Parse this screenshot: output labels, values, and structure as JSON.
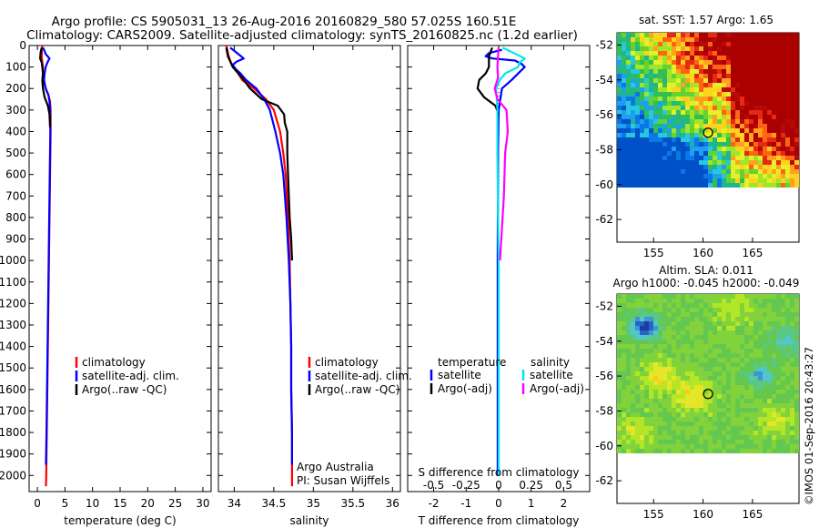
{
  "header": {
    "line1": "Argo profile: CS 5905031_13 26-Aug-2016 20160829_580 57.025S 160.51E",
    "line2": "Climatology: CARS2009. Satellite-adjusted climatology: synTS_20160825.nc (1.2d earlier)"
  },
  "credit": "©IMOS 01-Sep-2016 20:43:27",
  "colors": {
    "climatology": "#ff0000",
    "satellite": "#0000ff",
    "argo": "#000000",
    "sal_satellite": "#00e5ee",
    "sal_argo": "#ff00ff"
  },
  "legend_profile": {
    "climatology": "climatology",
    "satellite": "satellite-adj. clim.",
    "argo": "Argo(..raw -QC)"
  },
  "legend_diff": {
    "temperature_header": "temperature",
    "salinity_header": "salinity",
    "satellite": "satellite",
    "argo": "Argo(-adj)"
  },
  "annotation": {
    "line1": "Argo Australia",
    "line2": "PI: Susan Wijffels"
  },
  "map_sst": {
    "title": "sat. SST: 1.57 Argo: 1.65",
    "x_ticks": [
      155,
      160,
      165
    ],
    "y_ticks": [
      -52,
      -54,
      -56,
      -58,
      -60,
      -62
    ]
  },
  "map_sla": {
    "title1": "Altim. SLA: 0.011",
    "title2": "Argo h1000: -0.045 h2000: -0.049",
    "x_ticks": [
      155,
      160,
      165
    ],
    "y_ticks": [
      -52,
      -54,
      -56,
      -58,
      -60,
      -62
    ]
  },
  "chart_data": [
    {
      "type": "line",
      "name": "temperature-profile",
      "xlabel": "temperature (deg C)",
      "xlim": [
        -1.5,
        31.5
      ],
      "ylim": [
        2075,
        0
      ],
      "x_ticks": [
        0,
        5,
        10,
        15,
        20,
        25,
        30
      ],
      "y_ticks": [
        0,
        100,
        200,
        300,
        400,
        500,
        600,
        700,
        800,
        900,
        1000,
        1100,
        1200,
        1300,
        1400,
        1500,
        1600,
        1700,
        1800,
        1900,
        2000
      ],
      "series": [
        {
          "name": "climatology",
          "depth": [
            0,
            20,
            50,
            80,
            100,
            130,
            160,
            200,
            230,
            260,
            300,
            400,
            500,
            600,
            800,
            1000,
            1200,
            1400,
            1600,
            1800,
            2000,
            2050
          ],
          "values": [
            0.9,
            0.8,
            0.8,
            0.9,
            1.0,
            1.0,
            1.1,
            1.5,
            2.0,
            2.3,
            2.4,
            2.4,
            2.35,
            2.3,
            2.2,
            2.1,
            2.0,
            1.9,
            1.8,
            1.7,
            1.6,
            1.55
          ]
        },
        {
          "name": "satellite-adj. clim.",
          "depth": [
            10,
            20,
            40,
            60,
            80,
            100,
            130,
            160,
            200,
            230,
            260,
            300,
            400,
            500,
            600,
            800,
            1000,
            1200,
            1400,
            1600,
            1800,
            1950
          ],
          "values": [
            1.0,
            1.2,
            1.5,
            2.2,
            1.8,
            1.5,
            1.3,
            1.2,
            1.5,
            2.0,
            2.2,
            2.3,
            2.35,
            2.3,
            2.25,
            2.15,
            2.05,
            1.95,
            1.85,
            1.75,
            1.65,
            1.55
          ]
        },
        {
          "name": "Argo(..raw -QC)",
          "depth": [
            10,
            30,
            60,
            80,
            100,
            130,
            160,
            200,
            240,
            280,
            320,
            380
          ],
          "values": [
            0.8,
            0.6,
            0.5,
            0.8,
            0.9,
            1.0,
            0.9,
            1.0,
            1.3,
            1.9,
            2.2,
            2.3
          ]
        }
      ]
    },
    {
      "type": "line",
      "name": "salinity-profile",
      "xlabel": "salinity",
      "xlim": [
        33.8,
        36.1
      ],
      "ylim": [
        2075,
        0
      ],
      "x_ticks": [
        34,
        34.5,
        35,
        35.5,
        36
      ],
      "series": [
        {
          "name": "climatology",
          "depth": [
            0,
            50,
            80,
            100,
            130,
            160,
            200,
            250,
            300,
            400,
            500,
            600,
            800,
            1000,
            1200,
            1400,
            1600,
            1800,
            2000,
            2050
          ],
          "values": [
            33.9,
            33.93,
            33.96,
            34.0,
            34.05,
            34.1,
            34.25,
            34.4,
            34.5,
            34.58,
            34.62,
            34.65,
            34.68,
            34.7,
            34.71,
            34.72,
            34.72,
            34.73,
            34.73,
            34.73
          ]
        },
        {
          "name": "satellite-adj. clim.",
          "depth": [
            10,
            30,
            60,
            75,
            90,
            110,
            130,
            160,
            200,
            250,
            300,
            400,
            500,
            600,
            800,
            1000,
            1200,
            1400,
            1600,
            1800,
            1950
          ],
          "values": [
            33.95,
            34.02,
            34.12,
            34.03,
            33.98,
            34.02,
            34.08,
            34.15,
            34.28,
            34.38,
            34.45,
            34.52,
            34.58,
            34.62,
            34.66,
            34.69,
            34.71,
            34.72,
            34.72,
            34.73,
            34.73
          ]
        },
        {
          "name": "Argo(..raw -QC)",
          "depth": [
            10,
            50,
            100,
            150,
            200,
            250,
            280,
            320,
            360,
            400,
            500,
            600,
            700,
            800,
            900,
            1000
          ],
          "values": [
            33.9,
            33.92,
            33.98,
            34.1,
            34.2,
            34.35,
            34.55,
            34.63,
            34.64,
            34.67,
            34.67,
            34.68,
            34.69,
            34.7,
            34.72,
            34.73
          ]
        }
      ]
    },
    {
      "type": "line",
      "name": "difference-profile",
      "xlabel": "T difference from climatology",
      "xlabel_top": "S difference from climatology",
      "xlim": [
        -2.8,
        2.8
      ],
      "xlim_top": [
        -0.7,
        0.7
      ],
      "ylim": [
        2075,
        0
      ],
      "x_ticks": [
        -2,
        -1,
        0,
        1,
        2
      ],
      "x_ticks_top": [
        -0.5,
        -0.25,
        0,
        0.25,
        0.5
      ],
      "series": [
        {
          "name": "temperature satellite",
          "axis": "T",
          "depth": [
            20,
            35,
            50,
            60,
            70,
            85,
            100,
            130,
            160,
            200,
            300,
            500,
            1000,
            1500,
            2000
          ],
          "values": [
            0.1,
            -0.3,
            -0.4,
            -0.2,
            0.5,
            0.7,
            0.8,
            0.6,
            0.4,
            0.1,
            0.0,
            -0.02,
            -0.03,
            -0.03,
            -0.03
          ]
        },
        {
          "name": "temperature Argo(-adj)",
          "axis": "T",
          "depth": [
            10,
            50,
            100,
            130,
            160,
            200,
            240,
            280,
            320
          ],
          "values": [
            -0.2,
            -0.3,
            -0.3,
            -0.4,
            -0.6,
            -0.65,
            -0.45,
            -0.1,
            0.0
          ]
        },
        {
          "name": "salinity satellite",
          "axis": "S",
          "depth": [
            10,
            30,
            60,
            80,
            100,
            130,
            160,
            200,
            300,
            500,
            800,
            1000,
            1500,
            2000
          ],
          "values": [
            0.03,
            0.1,
            0.2,
            0.16,
            0.15,
            0.05,
            0.01,
            -0.02,
            -0.01,
            -0.01,
            -0.005,
            0.0,
            0.0,
            0.0
          ]
        },
        {
          "name": "salinity Argo(-adj)",
          "axis": "S",
          "depth": [
            10,
            50,
            100,
            150,
            200,
            250,
            300,
            400,
            500,
            700,
            900,
            1000
          ],
          "values": [
            0.0,
            -0.005,
            -0.01,
            -0.005,
            -0.03,
            -0.01,
            0.06,
            0.07,
            0.05,
            0.04,
            0.02,
            0.01
          ]
        }
      ]
    }
  ]
}
